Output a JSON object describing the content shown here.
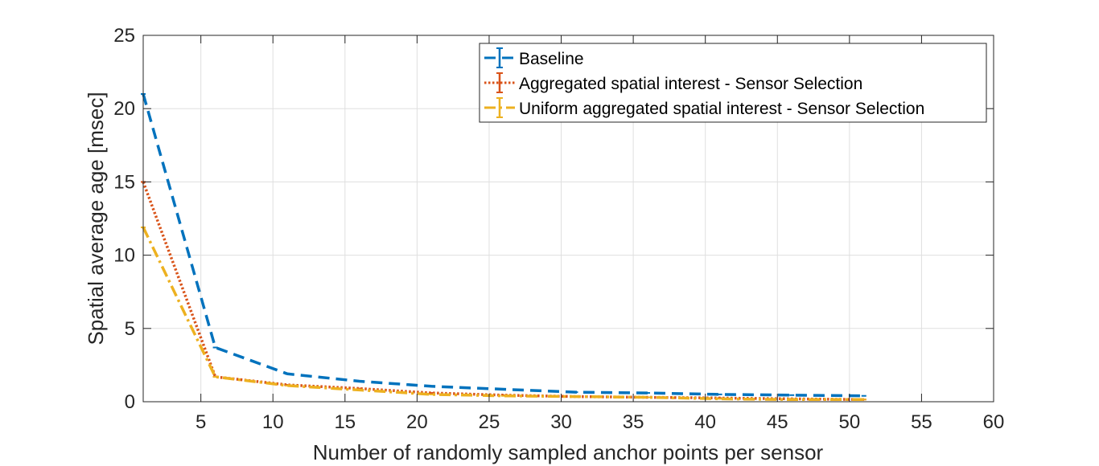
{
  "chart_data": {
    "type": "line",
    "xlabel": "Number of randomly sampled anchor points per sensor",
    "ylabel": "Spatial average age [msec]",
    "xlim": [
      1,
      60
    ],
    "ylim": [
      0,
      25
    ],
    "xticks": [
      5,
      10,
      15,
      20,
      25,
      30,
      35,
      40,
      45,
      50,
      55,
      60
    ],
    "yticks": [
      0,
      5,
      10,
      15,
      20,
      25
    ],
    "grid": true,
    "legend_position": "top-right",
    "series": [
      {
        "name": "Baseline",
        "color": "#0072BD",
        "line_style": "dashed",
        "x": [
          1,
          6,
          11,
          16,
          21,
          26,
          31,
          36,
          41,
          46,
          51
        ],
        "y": [
          21.0,
          3.7,
          1.9,
          1.4,
          1.05,
          0.85,
          0.65,
          0.6,
          0.5,
          0.45,
          0.4
        ]
      },
      {
        "name": "Aggregated spatial interest - Sensor Selection",
        "color": "#D95319",
        "line_style": "dotted",
        "x": [
          1,
          6,
          11,
          16,
          21,
          26,
          31,
          36,
          41,
          46,
          51
        ],
        "y": [
          15.0,
          1.7,
          1.15,
          0.9,
          0.6,
          0.45,
          0.35,
          0.3,
          0.25,
          0.2,
          0.15
        ]
      },
      {
        "name": "Uniform aggregated spatial interest - Sensor Selection",
        "color": "#EDB120",
        "line_style": "dash-dot",
        "x": [
          1,
          6,
          11,
          16,
          21,
          26,
          31,
          36,
          41,
          46,
          51
        ],
        "y": [
          11.9,
          1.7,
          1.1,
          0.8,
          0.5,
          0.4,
          0.35,
          0.3,
          0.2,
          0.15,
          0.15
        ]
      }
    ]
  }
}
